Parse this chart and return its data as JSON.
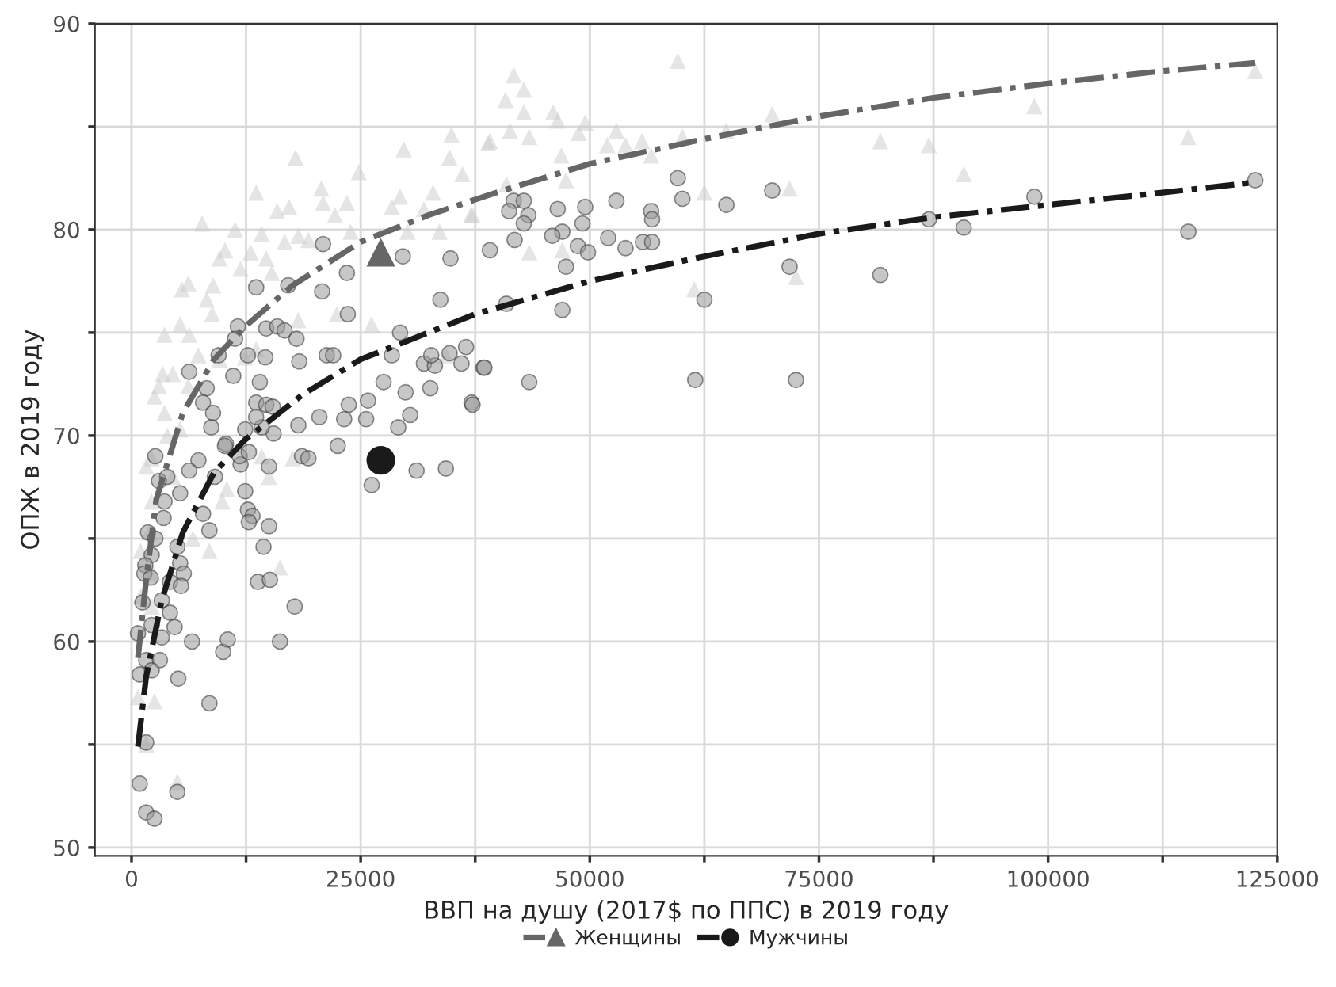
{
  "chart_data": {
    "type": "scatter",
    "xlabel": "ВВП на душу (2017$ по ППС) в 2019 году",
    "ylabel": "ОПЖ в 2019 году",
    "xlim": [
      -4000,
      125000
    ],
    "ylim": [
      49.6,
      90
    ],
    "xticks": [
      0,
      {
        "value": 12500,
        "label": null
      },
      25000,
      {
        "value": 37500,
        "label": null
      },
      50000,
      {
        "value": 62500,
        "label": null
      },
      75000,
      {
        "value": 87500,
        "label": null
      },
      100000,
      {
        "value": 112500,
        "label": null
      },
      125000
    ],
    "yticks": [
      50,
      {
        "value": 55,
        "label": null
      },
      60,
      {
        "value": 65,
        "label": null
      },
      70,
      {
        "value": 75,
        "label": null
      },
      80,
      {
        "value": 85,
        "label": null
      },
      90
    ],
    "grid": true,
    "legend": "bottom",
    "series": [
      {
        "marker": "triangle",
        "color": "#cccccc",
        "x": [
          7700,
          17900,
          13600,
          15900,
          17200,
          20700,
          20900,
          22200,
          23500,
          24800,
          29700,
          34900,
          34700,
          36100,
          32900,
          31900,
          29300,
          28400,
          37000,
          38900,
          33600,
          30100,
          23900,
          19300,
          18200,
          16700,
          14200,
          11300,
          10200,
          9600,
          11900,
          13000,
          14700,
          15300,
          8900,
          8200,
          5500,
          6200,
          8800,
          5300,
          3600,
          6300,
          7300,
          9600,
          12400,
          13600,
          18200,
          22400,
          26200,
          34300,
          3400,
          4500,
          3000,
          6200,
          2500,
          3600,
          5300,
          3900,
          1600,
          2200,
          4500,
          2200,
          10400,
          9900,
          14200,
          15000,
          17600,
          1000,
          1900,
          6700,
          8500,
          16200,
          1000,
          2200,
          700,
          2500,
          1600,
          5000,
          2300,
          1600,
          59600,
          41700,
          40800,
          42800,
          42800,
          46000,
          46500,
          49500,
          48800,
          39100,
          41300,
          43400,
          46900,
          51900,
          52900,
          53900,
          55700,
          56700,
          60100,
          64900,
          69900,
          81700,
          87000,
          98500,
          115300,
          122600,
          90800,
          71800,
          62500,
          47400,
          40900,
          37200,
          43400,
          47000,
          61400,
          72500
        ],
        "values": [
          80.3,
          83.5,
          81.8,
          80.9,
          81.1,
          82.0,
          81.3,
          80.7,
          81.3,
          82.8,
          83.9,
          84.6,
          83.5,
          82.7,
          81.8,
          81.0,
          81.6,
          81.1,
          80.7,
          84.2,
          79.9,
          79.9,
          79.9,
          79.5,
          79.7,
          79.4,
          79.8,
          80.0,
          79.0,
          78.6,
          78.1,
          78.9,
          78.6,
          77.9,
          77.3,
          76.6,
          77.1,
          77.4,
          75.9,
          75.4,
          74.9,
          74.9,
          73.9,
          73.7,
          73.8,
          74.2,
          75.6,
          75.9,
          75.4,
          73.9,
          73.0,
          73.0,
          72.4,
          72.4,
          71.9,
          71.1,
          70.3,
          70.0,
          68.5,
          68.9,
          68.0,
          66.8,
          67.4,
          66.8,
          69.0,
          68.0,
          68.9,
          64.4,
          65.3,
          65.0,
          64.4,
          63.6,
          62.2,
          61.7,
          57.3,
          57.1,
          55.0,
          53.2,
          63.3,
          64.0,
          88.2,
          87.5,
          86.3,
          86.8,
          85.7,
          85.7,
          85.3,
          85.2,
          84.7,
          84.3,
          84.8,
          84.5,
          83.6,
          84.1,
          84.8,
          84.1,
          84.3,
          83.6,
          84.5,
          84.8,
          85.6,
          84.3,
          84.1,
          86.0,
          84.5,
          87.7,
          82.7,
          82.0,
          81.8,
          82.4,
          82.2,
          80.7,
          78.9,
          79.0,
          77.1,
          77.7
        ]
      },
      {
        "marker": "circle",
        "color": "#999999",
        "x": [
          20900,
          20800,
          17100,
          13600,
          11600,
          11300,
          14700,
          15900,
          16700,
          18000,
          12700,
          14600,
          18300,
          9500,
          6300,
          8200,
          7800,
          8900,
          8700,
          11100,
          14000,
          13600,
          14700,
          15400,
          21300,
          22000,
          23600,
          23700,
          23200,
          25800,
          27500,
          28400,
          29300,
          29900,
          32600,
          31900,
          33100,
          32700,
          34700,
          36000,
          33700,
          34800,
          29600,
          23500,
          38400,
          37100,
          30400,
          29100,
          25600,
          20500,
          18200,
          15500,
          14200,
          12400,
          13600,
          10300,
          10200,
          7300,
          6300,
          5300,
          9100,
          11900,
          11800,
          12800,
          15000,
          18600,
          19300,
          22500,
          26200,
          31100,
          34300,
          2600,
          3000,
          3900,
          3600,
          3500,
          1800,
          2600,
          2200,
          1500,
          1400,
          2100,
          5000,
          5300,
          5700,
          4200,
          5400,
          3300,
          1200,
          4200,
          2200,
          3300,
          4700,
          6600,
          10000,
          10500,
          16200,
          12400,
          12700,
          13200,
          12800,
          15000,
          14400,
          13800,
          15100,
          17800,
          7800,
          8500,
          700,
          1600,
          3100,
          2200,
          900,
          5100,
          8500,
          1600,
          900,
          5000,
          1600,
          2500,
          59600,
          60100,
          64900,
          69900,
          41700,
          42800,
          41200,
          43300,
          42800,
          46500,
          49500,
          52900,
          56700,
          56800,
          49200,
          47000,
          45900,
          41800,
          48700,
          49800,
          52000,
          53900,
          55800,
          56800,
          39100,
          47400,
          71800,
          81700,
          87000,
          90800,
          98500,
          115300,
          122600,
          40900,
          47000,
          62500,
          36500,
          38500,
          43400,
          37200,
          61500,
          72500
        ],
        "values": [
          79.3,
          77.0,
          77.3,
          77.2,
          75.3,
          74.7,
          75.2,
          75.3,
          75.1,
          74.7,
          73.9,
          73.8,
          73.6,
          73.9,
          73.1,
          72.3,
          71.6,
          71.1,
          70.4,
          72.9,
          72.6,
          71.6,
          71.5,
          71.4,
          73.9,
          73.9,
          75.9,
          71.5,
          70.8,
          71.7,
          72.6,
          73.9,
          75.0,
          72.1,
          72.3,
          73.5,
          73.4,
          73.9,
          74.0,
          73.5,
          76.6,
          78.6,
          78.7,
          77.9,
          73.3,
          71.6,
          71.0,
          70.4,
          70.8,
          70.9,
          70.5,
          70.1,
          70.4,
          70.3,
          70.9,
          69.6,
          69.5,
          68.8,
          68.3,
          67.2,
          68.0,
          68.6,
          69.0,
          69.2,
          68.5,
          69.0,
          68.9,
          69.5,
          67.6,
          68.3,
          68.4,
          69.0,
          67.8,
          68.0,
          66.8,
          66.0,
          65.3,
          65.0,
          64.2,
          63.7,
          63.3,
          63.1,
          64.6,
          63.8,
          63.3,
          62.9,
          62.7,
          62.0,
          61.9,
          61.4,
          60.8,
          60.2,
          60.7,
          60.0,
          59.5,
          60.1,
          60.0,
          67.3,
          66.4,
          66.1,
          65.8,
          65.6,
          64.6,
          62.9,
          63.0,
          61.7,
          66.2,
          65.4,
          60.4,
          59.1,
          59.1,
          58.6,
          58.4,
          58.2,
          57.0,
          55.1,
          53.1,
          52.7,
          51.7,
          51.4,
          82.5,
          81.5,
          81.2,
          81.9,
          81.4,
          81.4,
          80.9,
          80.7,
          80.3,
          81.0,
          81.1,
          81.4,
          80.9,
          80.5,
          80.3,
          79.9,
          79.7,
          79.5,
          79.2,
          78.9,
          79.6,
          79.1,
          79.4,
          79.4,
          79.0,
          78.2,
          78.2,
          77.8,
          80.5,
          80.1,
          81.6,
          79.9,
          82.4,
          76.4,
          76.1,
          76.6,
          74.3,
          73.3,
          72.6,
          71.5,
          72.7,
          72.7
        ]
      },
      {
        "type": "line",
        "name": "Женщины",
        "color": "#666666",
        "line_style": "dashed",
        "x": [
          700,
          1600,
          2700,
          5600,
          9000,
          12400,
          17600,
          25000,
          32400,
          39800,
          50000,
          62500,
          75000,
          87500,
          100000,
          112500,
          122600
        ],
        "values": [
          59.2,
          63.0,
          66.9,
          71.1,
          73.7,
          75.3,
          77.3,
          79.4,
          80.7,
          81.8,
          83.2,
          84.4,
          85.5,
          86.4,
          87.1,
          87.7,
          88.1
        ]
      },
      {
        "type": "line",
        "name": "Мужчины",
        "color": "#1a1a1a",
        "line_style": "dashed",
        "x": [
          700,
          1600,
          3300,
          5600,
          9000,
          12400,
          18700,
          25000,
          37500,
          50000,
          62500,
          75000,
          87500,
          100000,
          112500,
          122600
        ],
        "values": [
          54.9,
          58.3,
          62.0,
          65.3,
          68.2,
          69.8,
          72.0,
          73.7,
          75.9,
          77.5,
          78.7,
          79.8,
          80.6,
          81.2,
          81.8,
          82.3
        ]
      },
      {
        "marker": "triangle",
        "color": "#666666",
        "x": [
          27200
        ],
        "values": [
          78.9
        ]
      },
      {
        "marker": "circle",
        "color": "#1a1a1a",
        "x": [
          27200
        ],
        "values": [
          68.8
        ]
      }
    ]
  }
}
